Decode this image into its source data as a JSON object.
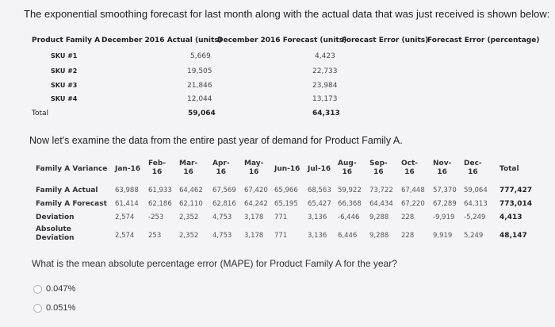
{
  "intro_text": "The exponential smoothing forecast for last month along with the actual data that was just received is shown below:",
  "table1": {
    "headers": [
      "Product Family A",
      "December 2016 Actual (units)",
      "December 2016 Forecast (units)",
      "Forecast Error (units)",
      "Forecast Error (percentage)"
    ],
    "rows": [
      {
        "label": "SKU #1",
        "actual": "5,669",
        "forecast": "4,423"
      },
      {
        "label": "SKU #2",
        "actual": "19,505",
        "forecast": "22,733"
      },
      {
        "label": "SKU #3",
        "actual": "21,846",
        "forecast": "23,984"
      },
      {
        "label": "SKU #4",
        "actual": "12,044",
        "forecast": "13,173"
      }
    ],
    "total": {
      "label": "Total",
      "actual": "59,064",
      "forecast": "64,313"
    }
  },
  "section2_text": "Now let's examine the data from the entire past year of demand for Product Family A.",
  "table2": {
    "corner": "Family A Variance",
    "months": [
      "Jan-16",
      "Feb-\n16",
      "Mar-\n16",
      "Apr-\n16",
      "May-\n16",
      "Jun-16",
      "Jul-16",
      "Aug-\n16",
      "Sep-\n16",
      "Oct-\n16",
      "Nov-\n16",
      "Dec-\n16",
      "Total"
    ],
    "rows": [
      {
        "label": "Family A Actual",
        "values": [
          "63,988",
          "61,933",
          "64,462",
          "67,569",
          "67,420",
          "65,966",
          "68,563",
          "59,922",
          "73,722",
          "67,448",
          "57,370",
          "59,064",
          "777,427"
        ]
      },
      {
        "label": "Family A Forecast",
        "values": [
          "61,414",
          "62,186",
          "62,110",
          "62,816",
          "64,242",
          "65,195",
          "65,427",
          "66,368",
          "64,434",
          "67,220",
          "67,289",
          "64,313",
          "773,014"
        ]
      },
      {
        "label": "Deviation",
        "values": [
          "2,574",
          "-253",
          "2,352",
          "4,753",
          "3,178",
          "771",
          "3,136",
          "-6,446",
          "9,288",
          "228",
          "-9,919",
          "-5,249",
          "4,413"
        ]
      },
      {
        "label": "Absolute\nDeviation",
        "values": [
          "2,574",
          "253",
          "2,352",
          "4,753",
          "3,178",
          "771",
          "3,136",
          "6,446",
          "9,288",
          "228",
          "9,919",
          "5,249",
          "48,147"
        ]
      }
    ]
  },
  "question": "What is the mean absolute percentage error (MAPE) for Product Family A for the year?",
  "options": [
    "0.047%",
    "0.051%"
  ]
}
